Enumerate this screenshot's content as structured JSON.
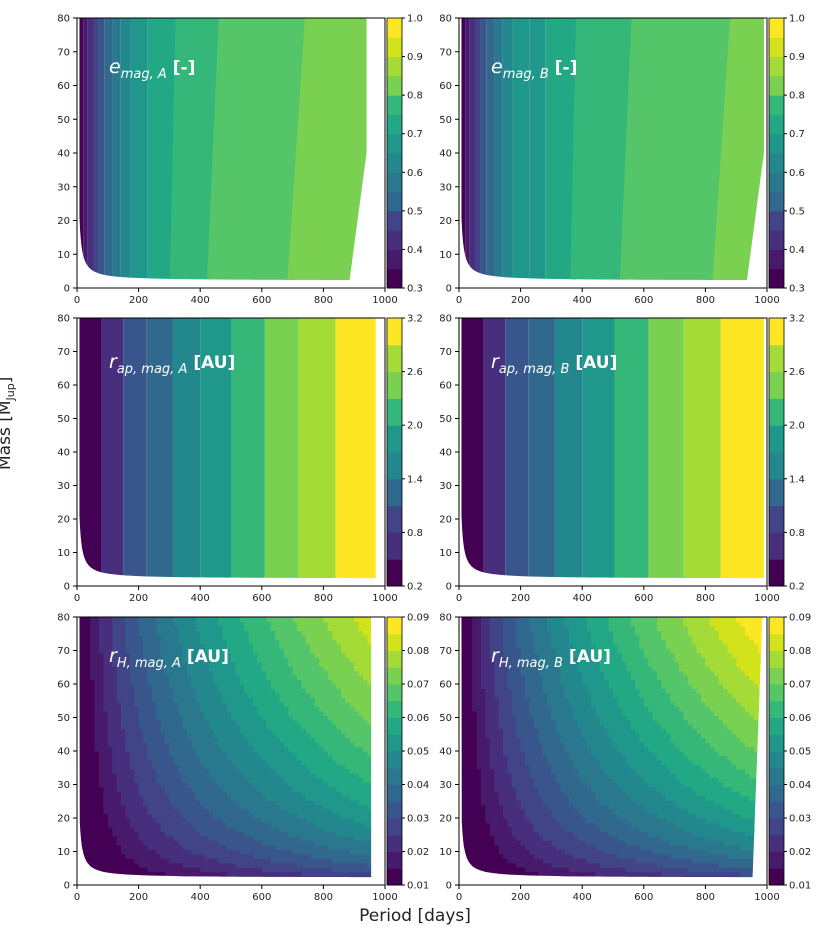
{
  "figure": {
    "ylabel_main": "Mass [M",
    "ylabel_sub": "Jup",
    "ylabel_end": "]",
    "xlabel": "Period [days]"
  },
  "chart_data": [
    {
      "type": "heatmap",
      "panel": "e_mag_A",
      "label_base": "e",
      "label_sub": "mag, A",
      "label_unit": "[-]",
      "xlim": [
        0,
        1000
      ],
      "ylim": [
        0,
        80
      ],
      "xticks": [
        0,
        200,
        400,
        600,
        800,
        1000
      ],
      "yticks": [
        0,
        10,
        20,
        30,
        40,
        50,
        60,
        70,
        80
      ],
      "colorbar": {
        "min": 0.3,
        "max": 1.0,
        "ticks": [
          "1.0",
          "0.9",
          "0.8",
          "0.7",
          "0.6",
          "0.5",
          "0.4",
          "0.3"
        ]
      },
      "levels_bounds": [
        0,
        20,
        35,
        55,
        70,
        90,
        115,
        140,
        175,
        230,
        320,
        460,
        740,
        940
      ]
    },
    {
      "type": "heatmap",
      "panel": "e_mag_B",
      "label_base": "e",
      "label_sub": "mag, B",
      "label_unit": "[-]",
      "xlim": [
        0,
        1000
      ],
      "ylim": [
        0,
        80
      ],
      "xticks": [
        0,
        200,
        400,
        600,
        800,
        1000
      ],
      "yticks": [
        0,
        10,
        20,
        30,
        40,
        50,
        60,
        70,
        80
      ],
      "colorbar": {
        "min": 0.3,
        "max": 1.0,
        "ticks": [
          "1.0",
          "0.9",
          "0.8",
          "0.7",
          "0.6",
          "0.5",
          "0.4",
          "0.3"
        ]
      },
      "levels_bounds": [
        0,
        20,
        35,
        55,
        70,
        90,
        115,
        140,
        175,
        230,
        280,
        380,
        560,
        880,
        990
      ]
    },
    {
      "type": "heatmap",
      "panel": "r_ap_mag_A",
      "label_base": "r",
      "label_sub": "ap, mag, A",
      "label_unit": "[AU]",
      "xlim": [
        0,
        1000
      ],
      "ylim": [
        0,
        80
      ],
      "xticks": [
        0,
        200,
        400,
        600,
        800,
        1000
      ],
      "yticks": [
        0,
        10,
        20,
        30,
        40,
        50,
        60,
        70,
        80
      ],
      "colorbar": {
        "min": 0.2,
        "max": 3.2,
        "ticks": [
          "3.2",
          "2.6",
          "2.0",
          "1.4",
          "0.8",
          "0.2"
        ]
      },
      "levels_bounds": [
        0,
        80,
        150,
        225,
        310,
        400,
        500,
        610,
        720,
        840,
        970
      ]
    },
    {
      "type": "heatmap",
      "panel": "r_ap_mag_B",
      "label_base": "r",
      "label_sub": "ap, mag, B",
      "label_unit": "[AU]",
      "xlim": [
        0,
        1000
      ],
      "ylim": [
        0,
        80
      ],
      "xticks": [
        0,
        200,
        400,
        600,
        800,
        1000
      ],
      "yticks": [
        0,
        10,
        20,
        30,
        40,
        50,
        60,
        70,
        80
      ],
      "colorbar": {
        "min": 0.2,
        "max": 3.2,
        "ticks": [
          "3.2",
          "2.6",
          "2.0",
          "1.4",
          "0.8",
          "0.2"
        ]
      },
      "levels_bounds": [
        0,
        80,
        150,
        225,
        310,
        400,
        505,
        615,
        730,
        850,
        990
      ]
    },
    {
      "type": "heatmap",
      "panel": "r_H_mag_A",
      "label_base": "r",
      "label_sub": "H, mag, A",
      "label_unit": "[AU]",
      "xlim": [
        0,
        1000
      ],
      "ylim": [
        0,
        80
      ],
      "xticks": [
        0,
        200,
        400,
        600,
        800,
        1000
      ],
      "yticks": [
        0,
        10,
        20,
        30,
        40,
        50,
        60,
        70,
        80
      ],
      "colorbar": {
        "min": 0.01,
        "max": 0.09,
        "ticks": [
          "0.09",
          "0.08",
          "0.07",
          "0.06",
          "0.05",
          "0.04",
          "0.03",
          "0.02",
          "0.01"
        ]
      },
      "hill_max": 0.085
    },
    {
      "type": "heatmap",
      "panel": "r_H_mag_B",
      "label_base": "r",
      "label_sub": "H, mag, B",
      "label_unit": "[AU]",
      "xlim": [
        0,
        1000
      ],
      "ylim": [
        0,
        80
      ],
      "xticks": [
        0,
        200,
        400,
        600,
        800,
        1000
      ],
      "yticks": [
        0,
        10,
        20,
        30,
        40,
        50,
        60,
        70,
        80
      ],
      "colorbar": {
        "min": 0.01,
        "max": 0.09,
        "ticks": [
          "0.09",
          "0.08",
          "0.07",
          "0.06",
          "0.05",
          "0.04",
          "0.03",
          "0.02",
          "0.01"
        ]
      },
      "hill_max": 0.09
    }
  ]
}
